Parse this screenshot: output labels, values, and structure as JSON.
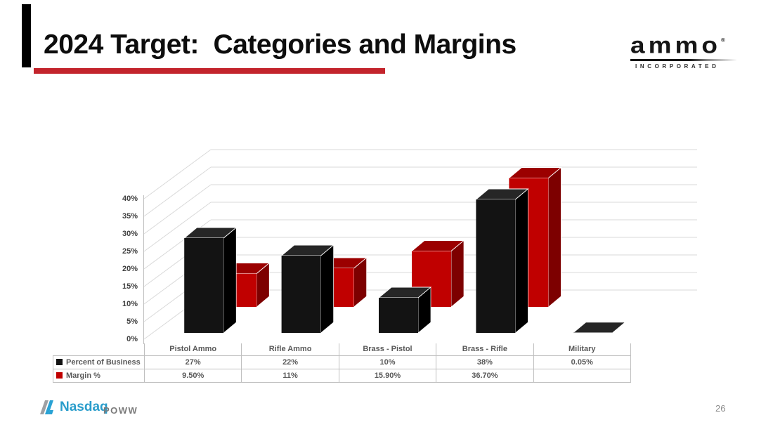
{
  "slide": {
    "title": "2024 Target:  Categories and Margins",
    "page_number": "26"
  },
  "logo": {
    "wordmark": "ammo",
    "registered": "®",
    "subtext": "INCORPORATED"
  },
  "footer": {
    "nasdaq": "Nasdaq",
    "ticker": "POWW"
  },
  "colors": {
    "accent_red": "#c3242c",
    "bar_black_front": "#131313",
    "bar_black_top": "#262626",
    "bar_black_side": "#000000",
    "bar_red_front": "#c00000",
    "bar_red_top": "#9b0000",
    "bar_red_side": "#7d0000",
    "gridline": "#d9d9d9",
    "axis": "#bfbfbf",
    "table_border": "#bfbfbf",
    "table_text": "#595959",
    "nasdaq_blue": "#2a9dcb"
  },
  "chart_data": {
    "type": "bar",
    "projection": "3d",
    "title": "",
    "xlabel": "",
    "ylabel": "",
    "categories": [
      "Pistol Ammo",
      "Rifle Ammo",
      "Brass - Pistol",
      "Brass - Rifle",
      "Military"
    ],
    "series": [
      {
        "name": "Percent of Business",
        "color": "#131313",
        "values": [
          27,
          22,
          10,
          38,
          0.05
        ],
        "labels": [
          "27%",
          "22%",
          "10%",
          "38%",
          "0.05%"
        ]
      },
      {
        "name": "Margin %",
        "color": "#c00000",
        "values": [
          9.5,
          11,
          15.9,
          36.7,
          null
        ],
        "labels": [
          "9.50%",
          "11%",
          "15.90%",
          "36.70%",
          ""
        ]
      }
    ],
    "ylim": [
      0,
      40
    ],
    "ytick_step": 5,
    "ytick_labels": [
      "0%",
      "5%",
      "10%",
      "15%",
      "20%",
      "25%",
      "30%",
      "35%",
      "40%"
    ],
    "grid": true,
    "legend_position": "table-left"
  }
}
